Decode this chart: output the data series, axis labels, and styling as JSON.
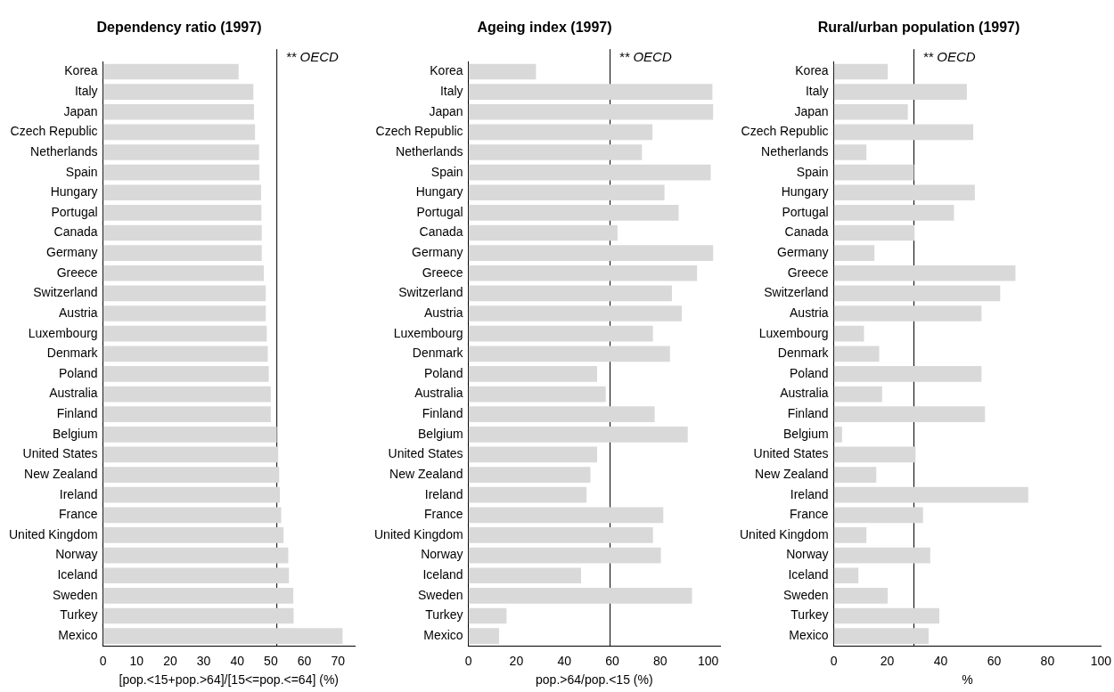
{
  "chart_data": [
    {
      "type": "bar",
      "orientation": "horizontal",
      "title": "Dependency ratio (1997)",
      "xlabel": "[pop.<15+pop.>64]/[15<=pop.<=64] (%)",
      "categories": [
        "Korea",
        "Italy",
        "Japan",
        "Czech Republic",
        "Netherlands",
        "Spain",
        "Hungary",
        "Portugal",
        "Canada",
        "Germany",
        "Greece",
        "Switzerland",
        "Austria",
        "Luxembourg",
        "Denmark",
        "Poland",
        "Australia",
        "Finland",
        "Belgium",
        "United States",
        "New Zealand",
        "Ireland",
        "France",
        "United Kingdom",
        "Norway",
        "Iceland",
        "Sweden",
        "Turkey",
        "Mexico"
      ],
      "values": [
        40.4,
        44.8,
        45.0,
        45.3,
        46.5,
        46.6,
        47.1,
        47.2,
        47.3,
        47.3,
        47.9,
        48.5,
        48.5,
        48.8,
        49.1,
        49.4,
        50.0,
        50.0,
        51.8,
        52.2,
        52.5,
        52.7,
        53.1,
        53.8,
        55.2,
        55.4,
        56.7,
        56.8,
        71.4
      ],
      "color": "#d9d9d9",
      "xlim": [
        0,
        75
      ],
      "xticks": [
        0,
        10,
        20,
        30,
        40,
        50,
        60,
        70
      ],
      "ref_lines": [
        {
          "axis": "x",
          "value": 51.8,
          "label": "** OECD"
        }
      ]
    },
    {
      "type": "bar",
      "orientation": "horizontal",
      "title": "Ageing index (1997)",
      "xlabel": "pop.>64/pop.<15 (%)",
      "categories": [
        "Korea",
        "Italy",
        "Japan",
        "Czech Republic",
        "Netherlands",
        "Spain",
        "Hungary",
        "Portugal",
        "Canada",
        "Germany",
        "Greece",
        "Switzerland",
        "Austria",
        "Luxembourg",
        "Denmark",
        "Poland",
        "Australia",
        "Finland",
        "Belgium",
        "United States",
        "New Zealand",
        "Ireland",
        "France",
        "United Kingdom",
        "Norway",
        "Iceland",
        "Sweden",
        "Turkey",
        "Mexico"
      ],
      "values": [
        28.2,
        101.8,
        102.1,
        76.8,
        72.4,
        101.1,
        81.8,
        87.7,
        62.2,
        102.1,
        95.4,
        84.9,
        89.0,
        77.0,
        84.1,
        53.7,
        57.3,
        77.7,
        91.5,
        53.7,
        50.9,
        49.3,
        81.3,
        77.0,
        80.3,
        47.0,
        93.3,
        15.9,
        12.8
      ],
      "color": "#d9d9d9",
      "xlim": [
        0,
        105
      ],
      "xticks": [
        0,
        20,
        40,
        60,
        80,
        100
      ],
      "ref_lines": [
        {
          "axis": "x",
          "value": 59.1,
          "label": "** OECD"
        }
      ]
    },
    {
      "type": "bar",
      "orientation": "horizontal",
      "title": "Rural/urban population (1997)",
      "xlabel": "%",
      "categories": [
        "Korea",
        "Italy",
        "Japan",
        "Czech Republic",
        "Netherlands",
        "Spain",
        "Hungary",
        "Portugal",
        "Canada",
        "Germany",
        "Greece",
        "Switzerland",
        "Austria",
        "Luxembourg",
        "Denmark",
        "Poland",
        "Australia",
        "Finland",
        "Belgium",
        "United States",
        "New Zealand",
        "Ireland",
        "France",
        "United Kingdom",
        "Norway",
        "Iceland",
        "Sweden",
        "Turkey",
        "Mexico"
      ],
      "values": [
        20.2,
        49.8,
        27.7,
        52.2,
        12.2,
        30.0,
        52.8,
        45.0,
        30.2,
        15.2,
        68.0,
        62.3,
        55.3,
        11.3,
        17.0,
        55.3,
        18.1,
        56.6,
        3.1,
        30.6,
        15.9,
        72.8,
        33.4,
        12.2,
        36.1,
        9.2,
        20.2,
        39.5,
        35.5
      ],
      "color": "#d9d9d9",
      "xlim": [
        0,
        100
      ],
      "xticks": [
        0,
        20,
        40,
        60,
        80,
        100
      ],
      "ref_lines": [
        {
          "axis": "x",
          "value": 30.0,
          "label": "** OECD"
        }
      ]
    }
  ]
}
